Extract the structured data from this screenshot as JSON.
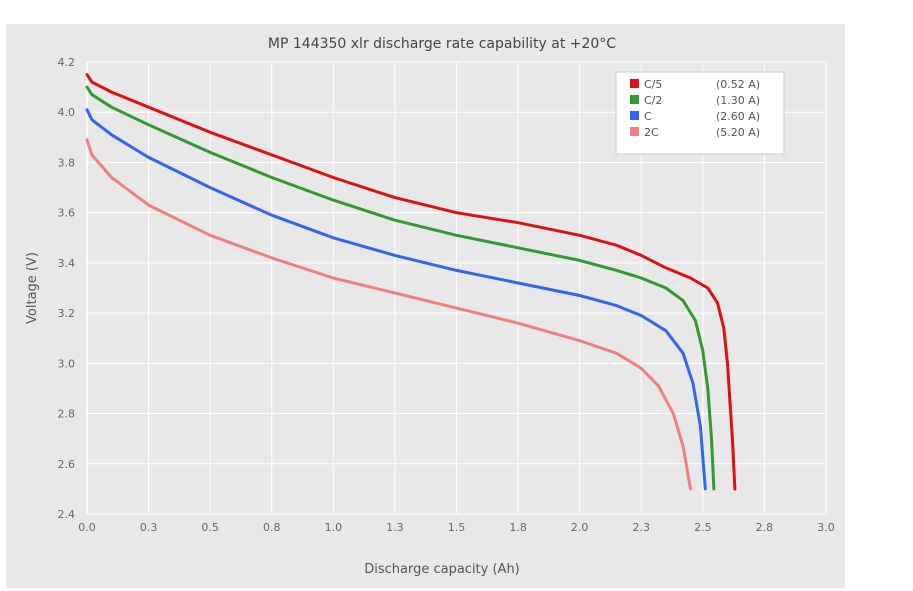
{
  "chart_data": {
    "type": "line",
    "title": "MP 144350 xlr discharge rate capability at +20°C",
    "xlabel": "Discharge capacity (Ah)",
    "ylabel": "Voltage (V)",
    "xlim": [
      0,
      3.0
    ],
    "ylim": [
      2.4,
      4.2
    ],
    "x_ticks": [
      "0.0",
      "0.3",
      "0.5",
      "0.8",
      "1.0",
      "1.3",
      "1.5",
      "1.8",
      "2.0",
      "2.3",
      "2.5",
      "2.8",
      "3.0"
    ],
    "y_ticks": [
      "2.4",
      "2.6",
      "2.8",
      "3.0",
      "3.2",
      "3.4",
      "3.6",
      "3.8",
      "4.0",
      "4.2"
    ],
    "grid": true,
    "legend_position": "top-right",
    "series": [
      {
        "name": "C/5",
        "current": "(0.52 A)",
        "color": "#dd1111",
        "points": [
          [
            0,
            4.15
          ],
          [
            0.02,
            4.12
          ],
          [
            0.1,
            4.08
          ],
          [
            0.25,
            4.02
          ],
          [
            0.5,
            3.92
          ],
          [
            0.75,
            3.83
          ],
          [
            1.0,
            3.74
          ],
          [
            1.25,
            3.66
          ],
          [
            1.5,
            3.6
          ],
          [
            1.75,
            3.56
          ],
          [
            2.0,
            3.51
          ],
          [
            2.15,
            3.47
          ],
          [
            2.25,
            3.43
          ],
          [
            2.35,
            3.38
          ],
          [
            2.45,
            3.34
          ],
          [
            2.52,
            3.3
          ],
          [
            2.56,
            3.24
          ],
          [
            2.585,
            3.14
          ],
          [
            2.6,
            3.0
          ],
          [
            2.61,
            2.85
          ],
          [
            2.62,
            2.7
          ],
          [
            2.63,
            2.5
          ]
        ]
      },
      {
        "name": "C/2",
        "current": "(1.30 A)",
        "color": "#339933",
        "points": [
          [
            0,
            4.1
          ],
          [
            0.02,
            4.07
          ],
          [
            0.1,
            4.02
          ],
          [
            0.25,
            3.95
          ],
          [
            0.5,
            3.84
          ],
          [
            0.75,
            3.74
          ],
          [
            1.0,
            3.65
          ],
          [
            1.25,
            3.57
          ],
          [
            1.5,
            3.51
          ],
          [
            1.75,
            3.46
          ],
          [
            2.0,
            3.41
          ],
          [
            2.15,
            3.37
          ],
          [
            2.25,
            3.34
          ],
          [
            2.35,
            3.3
          ],
          [
            2.42,
            3.25
          ],
          [
            2.47,
            3.17
          ],
          [
            2.5,
            3.05
          ],
          [
            2.52,
            2.9
          ],
          [
            2.535,
            2.7
          ],
          [
            2.545,
            2.5
          ]
        ]
      },
      {
        "name": "C",
        "current": "(2.60 A)",
        "color": "#3366ee",
        "points": [
          [
            0,
            4.01
          ],
          [
            0.02,
            3.97
          ],
          [
            0.1,
            3.91
          ],
          [
            0.25,
            3.82
          ],
          [
            0.5,
            3.7
          ],
          [
            0.75,
            3.59
          ],
          [
            1.0,
            3.5
          ],
          [
            1.25,
            3.43
          ],
          [
            1.5,
            3.37
          ],
          [
            1.75,
            3.32
          ],
          [
            2.0,
            3.27
          ],
          [
            2.15,
            3.23
          ],
          [
            2.25,
            3.19
          ],
          [
            2.35,
            3.13
          ],
          [
            2.42,
            3.04
          ],
          [
            2.46,
            2.92
          ],
          [
            2.49,
            2.75
          ],
          [
            2.51,
            2.5
          ]
        ]
      },
      {
        "name": "2C",
        "current": "(5.20 A)",
        "color": "#f08080",
        "points": [
          [
            0,
            3.89
          ],
          [
            0.02,
            3.83
          ],
          [
            0.1,
            3.74
          ],
          [
            0.25,
            3.63
          ],
          [
            0.5,
            3.51
          ],
          [
            0.75,
            3.42
          ],
          [
            1.0,
            3.34
          ],
          [
            1.25,
            3.28
          ],
          [
            1.5,
            3.22
          ],
          [
            1.75,
            3.16
          ],
          [
            2.0,
            3.09
          ],
          [
            2.15,
            3.04
          ],
          [
            2.25,
            2.98
          ],
          [
            2.32,
            2.91
          ],
          [
            2.38,
            2.8
          ],
          [
            2.42,
            2.67
          ],
          [
            2.45,
            2.5
          ]
        ]
      }
    ]
  }
}
